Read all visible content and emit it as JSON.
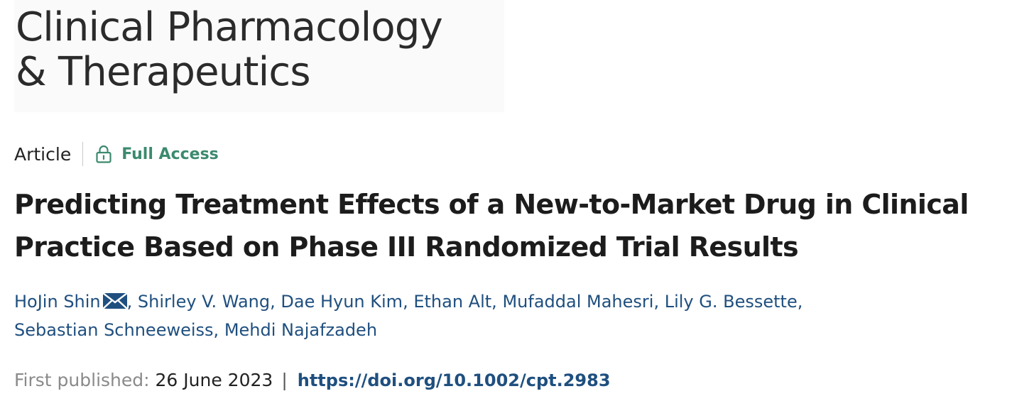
{
  "journal": {
    "line1": "Clinical Pharmacology",
    "line2": "& Therapeutics"
  },
  "meta": {
    "article_type": "Article",
    "access_label": "Full Access",
    "access_icon": "lock-icon",
    "access_color": "#3c8a6e"
  },
  "article": {
    "title_line1": "Predicting Treatment Effects of a New-to-Market Drug in Clinical",
    "title_line2": "Practice Based on Phase III Randomized Trial Results"
  },
  "authors": [
    {
      "name": "HoJin Shin",
      "corresponding_icon": "mail-icon"
    },
    {
      "name": "Shirley V. Wang"
    },
    {
      "name": "Dae Hyun Kim"
    },
    {
      "name": "Ethan Alt"
    },
    {
      "name": "Mufaddal Mahesri"
    },
    {
      "name": "Lily G. Bessette"
    },
    {
      "name": "Sebastian Schneeweiss"
    },
    {
      "name": "Mehdi Najafzadeh"
    }
  ],
  "author_separator": ",",
  "publication": {
    "label": "First published:",
    "date": "26 June 2023",
    "separator": "|",
    "doi": "https://doi.org/10.1002/cpt.2983"
  },
  "colors": {
    "link": "#1f4f7f",
    "title": "#1c1c1c"
  }
}
